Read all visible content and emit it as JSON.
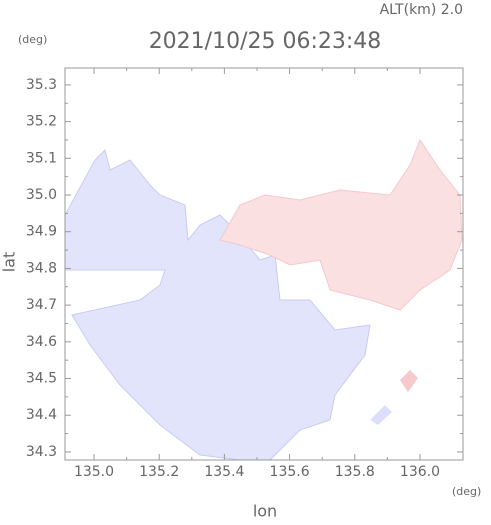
{
  "chart_data": {
    "type": "map",
    "title": "2021/10/25 06:23:48",
    "subtitle": "ALT(km) 2.0",
    "x_label": "lon",
    "y_label": "lat",
    "x_unit": "(deg)",
    "y_unit": "(deg)",
    "xlim": [
      134.911,
      136.132
    ],
    "ylim": [
      34.278,
      35.346
    ],
    "xticks": [
      {
        "value": 135,
        "label": "135.0"
      },
      135.2,
      135.4,
      135.6,
      135.8,
      {
        "value": 136,
        "label": "136.0"
      }
    ],
    "yticks": [
      35.3,
      35.2,
      35.1,
      {
        "value": 35,
        "label": "35.0"
      },
      34.9,
      34.8,
      34.7,
      34.6,
      34.5,
      34.4,
      34.3
    ]
  }
}
